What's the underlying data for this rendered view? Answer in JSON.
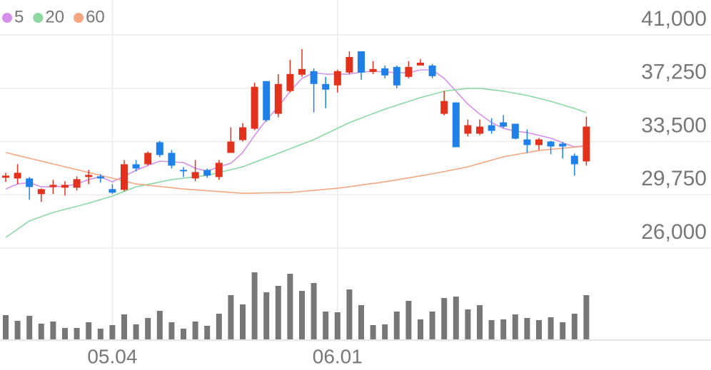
{
  "chart_data": {
    "type": "candlestick",
    "categories": [
      null,
      null,
      null,
      null,
      null,
      null,
      null,
      null,
      null,
      "05.04",
      null,
      null,
      null,
      null,
      null,
      null,
      null,
      null,
      null,
      null,
      null,
      null,
      null,
      null,
      null,
      null,
      null,
      null,
      "06.01",
      null,
      null,
      null,
      null,
      null,
      null,
      null,
      null,
      null,
      null,
      null,
      null,
      null,
      null,
      null,
      null,
      null,
      null,
      null,
      null,
      null
    ],
    "open": [
      30950,
      30900,
      30900,
      29800,
      30300,
      30250,
      30250,
      31000,
      31050,
      30150,
      30100,
      31900,
      31900,
      33450,
      32700,
      31500,
      30900,
      31500,
      31000,
      32700,
      33600,
      34400,
      37750,
      35450,
      37050,
      38200,
      38450,
      37550,
      37450,
      38350,
      39850,
      38400,
      38650,
      38750,
      38050,
      38850,
      38850,
      35450,
      36250,
      34050,
      34050,
      34650,
      34850,
      34750,
      33650,
      33250,
      33500,
      33350,
      32500,
      32100
    ],
    "high": [
      31300,
      31900,
      31000,
      30200,
      30800,
      30700,
      31050,
      31500,
      31200,
      30500,
      32200,
      32200,
      32800,
      33550,
      32900,
      31700,
      32200,
      31600,
      32200,
      34500,
      34800,
      37650,
      37750,
      38250,
      39250,
      40000,
      38650,
      38050,
      38550,
      39850,
      39850,
      39150,
      38850,
      38850,
      39150,
      39300,
      38950,
      37050,
      36250,
      35050,
      35050,
      35150,
      35350,
      34750,
      34350,
      33750,
      33550,
      33450,
      32650,
      35250
    ],
    "low": [
      30650,
      30500,
      29400,
      29250,
      29800,
      29700,
      30050,
      30500,
      30600,
      29800,
      30000,
      31400,
      31800,
      32400,
      31600,
      31000,
      30700,
      30950,
      30800,
      32700,
      33500,
      34300,
      34900,
      35200,
      36950,
      38050,
      35550,
      35850,
      36950,
      38250,
      37850,
      38250,
      37950,
      37250,
      37950,
      38850,
      37950,
      35350,
      33100,
      33850,
      33950,
      34050,
      34450,
      33650,
      32700,
      32900,
      32600,
      32300,
      31100,
      31800
    ],
    "close": [
      31100,
      31300,
      30300,
      30150,
      30450,
      30450,
      30850,
      31150,
      30900,
      29900,
      31900,
      31600,
      32700,
      32550,
      31800,
      31400,
      31350,
      31100,
      32000,
      33500,
      34500,
      37350,
      35000,
      37550,
      38250,
      38600,
      37550,
      37150,
      38450,
      39450,
      38350,
      38600,
      38150,
      37450,
      38750,
      39050,
      38100,
      36350,
      33100,
      34650,
      34550,
      34250,
      34550,
      33700,
      33250,
      33650,
      33150,
      33150,
      31900,
      34550
    ],
    "up_color": "#e2321e",
    "down_color": "#1f80e8",
    "series": [
      {
        "name": "5",
        "color": "#d58fe8",
        "values": [
          30160,
          30510,
          30620,
          30310,
          30310,
          30360,
          30510,
          30820,
          31020,
          30660,
          31070,
          31470,
          31820,
          32120,
          32070,
          32020,
          31620,
          31420,
          31720,
          31970,
          32720,
          33930,
          35030,
          35930,
          37040,
          37940,
          38340,
          38240,
          38240,
          38240,
          38390,
          38440,
          38390,
          38340,
          38340,
          38540,
          38540,
          37940,
          37040,
          36130,
          35430,
          34830,
          34430,
          34230,
          34130,
          33930,
          33730,
          33420,
          33120,
          33220
        ]
      },
      {
        "name": "20",
        "color": "#8cd9a2",
        "values": [
          26750,
          27330,
          27910,
          28210,
          28510,
          28730,
          28940,
          29160,
          29410,
          29660,
          29990,
          30310,
          30480,
          30650,
          30820,
          30920,
          31020,
          31120,
          31320,
          31520,
          31720,
          32040,
          32350,
          32670,
          32990,
          33310,
          33630,
          34030,
          34430,
          34830,
          35150,
          35470,
          35780,
          36050,
          36320,
          36590,
          36810,
          37040,
          37140,
          37240,
          37240,
          37140,
          37040,
          36890,
          36740,
          36540,
          36330,
          36080,
          35830,
          35530
        ]
      },
      {
        "name": "60",
        "color": "#f3a67f",
        "values": [
          32720,
          32520,
          32320,
          32120,
          31920,
          31720,
          31520,
          31320,
          31120,
          30920,
          30720,
          30510,
          30420,
          30340,
          30250,
          30160,
          30100,
          30040,
          29980,
          29920,
          29860,
          29870,
          29890,
          29900,
          29910,
          29990,
          30060,
          30140,
          30210,
          30320,
          30440,
          30550,
          30660,
          30800,
          30940,
          31080,
          31220,
          31390,
          31550,
          31720,
          31950,
          32190,
          32420,
          32570,
          32720,
          32870,
          32950,
          33020,
          33100,
          33170
        ]
      }
    ],
    "volume": [
      34,
      26,
      33,
      22,
      25,
      16,
      16,
      24,
      15,
      20,
      35,
      21,
      30,
      40,
      24,
      15,
      25,
      19,
      36,
      62,
      49,
      94,
      66,
      75,
      92,
      68,
      79,
      39,
      38,
      70,
      48,
      20,
      21,
      39,
      54,
      28,
      39,
      58,
      60,
      42,
      48,
      27,
      28,
      35,
      30,
      27,
      31,
      24,
      36,
      62
    ],
    "volume_color": "#777777",
    "ylim": [
      26000,
      41000
    ],
    "yticks": [
      {
        "value": 41000,
        "label": "41,000"
      },
      {
        "value": 37250,
        "label": "37,250"
      },
      {
        "value": 33500,
        "label": "33,500"
      },
      {
        "value": 29750,
        "label": "29,750"
      },
      {
        "value": 26000,
        "label": "26,000"
      }
    ],
    "grid": true
  }
}
